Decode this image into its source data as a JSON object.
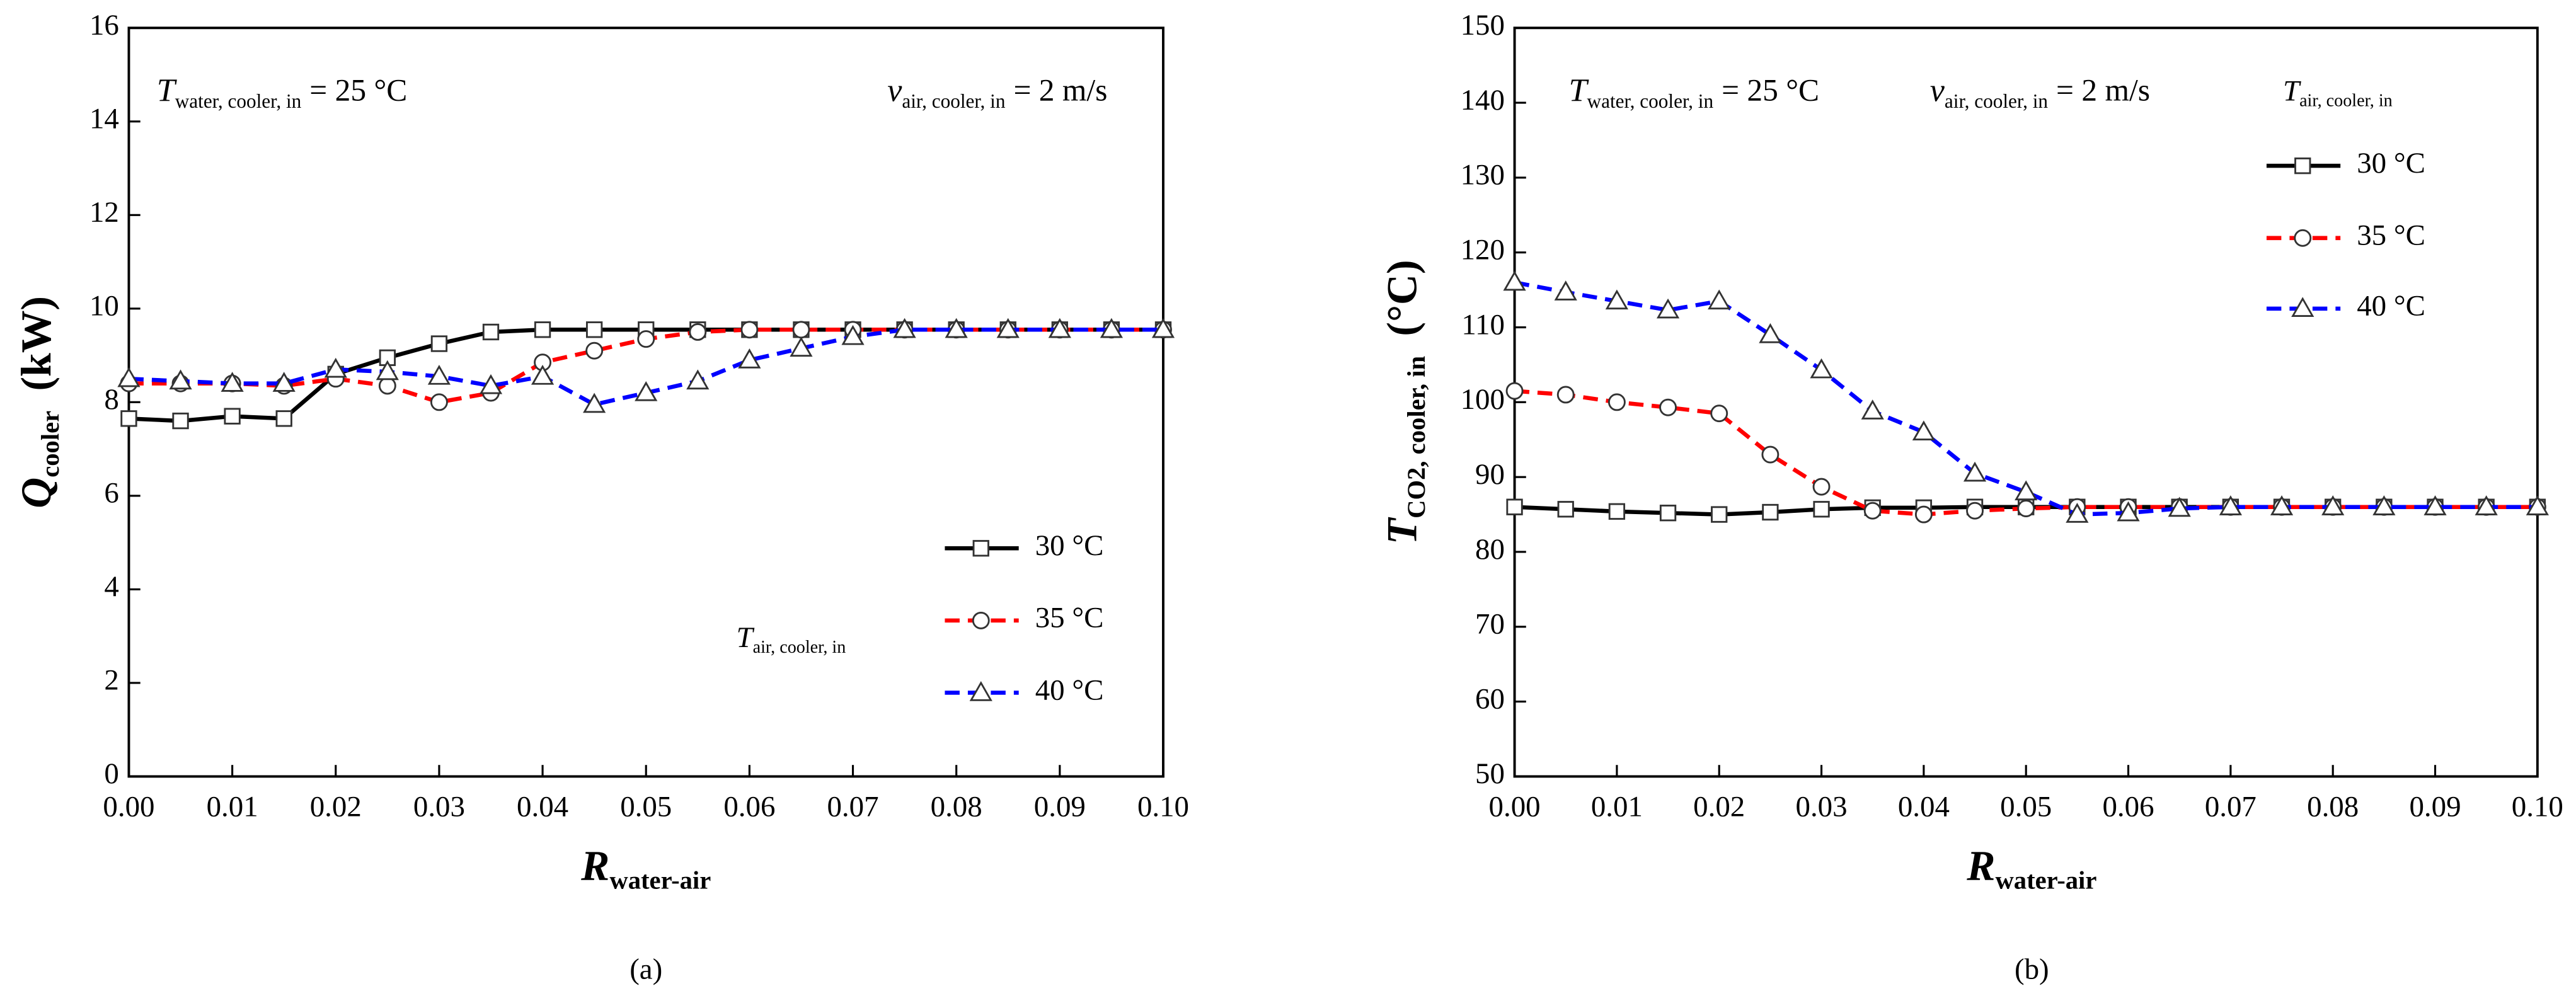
{
  "chart_data": [
    {
      "type": "line",
      "panel_label": "(a)",
      "ylabel": {
        "symbol": "Q",
        "sub": "cooler",
        "unit": "(kW)"
      },
      "xlabel": {
        "symbol": "R",
        "sub": "water-air"
      },
      "annotations": [
        {
          "symbol": "T",
          "sub": "water, cooler, in",
          "text": "= 25 °C"
        },
        {
          "symbol": "v",
          "sub": "air, cooler, in",
          "text": "= 2 m/s"
        }
      ],
      "legend_title": {
        "symbol": "T",
        "sub": "air, cooler, in"
      },
      "x": [
        0,
        0.005,
        0.01,
        0.015,
        0.02,
        0.025,
        0.03,
        0.035,
        0.04,
        0.045,
        0.05,
        0.055,
        0.06,
        0.065,
        0.07,
        0.075,
        0.08,
        0.085,
        0.09,
        0.095,
        0.1
      ],
      "series": [
        {
          "name": "30 °C",
          "color": "#000000",
          "marker": "square",
          "dashed": false,
          "values": [
            7.65,
            7.6,
            7.7,
            7.65,
            8.6,
            8.95,
            9.25,
            9.5,
            9.55,
            9.55,
            9.55,
            9.55,
            9.55,
            9.55,
            9.55,
            9.55,
            9.55,
            9.55,
            9.55,
            9.55,
            9.55
          ]
        },
        {
          "name": "35 °C",
          "color": "#ff0000",
          "marker": "circle",
          "dashed": true,
          "values": [
            8.4,
            8.4,
            8.4,
            8.35,
            8.5,
            8.35,
            8.0,
            8.2,
            8.85,
            9.1,
            9.35,
            9.5,
            9.55,
            9.55,
            9.55,
            9.55,
            9.55,
            9.55,
            9.55,
            9.55,
            9.55
          ]
        },
        {
          "name": "40 °C",
          "color": "#0000ff",
          "marker": "triangle",
          "dashed": true,
          "values": [
            8.5,
            8.45,
            8.4,
            8.4,
            8.7,
            8.65,
            8.55,
            8.35,
            8.55,
            7.95,
            8.2,
            8.45,
            8.9,
            9.15,
            9.4,
            9.55,
            9.55,
            9.55,
            9.55,
            9.55,
            9.55
          ]
        }
      ],
      "xlim": [
        0,
        0.1
      ],
      "ylim": [
        0,
        16
      ],
      "xticks": [
        {
          "value": 0,
          "label": "0.00"
        },
        0.01,
        0.02,
        0.03,
        0.04,
        0.05,
        0.06,
        0.07,
        0.08,
        0.09,
        {
          "value": 0.1,
          "label": "0.10"
        }
      ],
      "yticks": [
        0,
        2,
        4,
        6,
        8,
        10,
        12,
        14,
        16
      ]
    },
    {
      "type": "line",
      "panel_label": "(b)",
      "ylabel": {
        "symbol": "T",
        "sub": "CO2, cooler, in",
        "unit": "(°C)"
      },
      "xlabel": {
        "symbol": "R",
        "sub": "water-air"
      },
      "annotations": [
        {
          "symbol": "T",
          "sub": "water, cooler, in",
          "text": "= 25 °C"
        },
        {
          "symbol": "v",
          "sub": "air, cooler, in",
          "text": "= 2 m/s"
        }
      ],
      "legend_title": {
        "symbol": "T",
        "sub": "air, cooler, in"
      },
      "x": [
        0,
        0.005,
        0.01,
        0.015,
        0.02,
        0.025,
        0.03,
        0.035,
        0.04,
        0.045,
        0.05,
        0.055,
        0.06,
        0.065,
        0.07,
        0.075,
        0.08,
        0.085,
        0.09,
        0.095,
        0.1
      ],
      "series": [
        {
          "name": "30 °C",
          "color": "#000000",
          "marker": "square",
          "dashed": false,
          "values": [
            86,
            85.7,
            85.4,
            85.2,
            85,
            85.3,
            85.7,
            85.9,
            85.9,
            86,
            86,
            86,
            86,
            86,
            86,
            86,
            86,
            86,
            86,
            86,
            86
          ]
        },
        {
          "name": "35 °C",
          "color": "#ff0000",
          "marker": "circle",
          "dashed": true,
          "values": [
            101.5,
            101,
            100,
            99.3,
            98.5,
            93,
            88.7,
            85.5,
            85,
            85.5,
            85.8,
            86,
            86,
            86,
            86,
            86,
            86,
            86,
            86,
            86,
            86
          ]
        },
        {
          "name": "40 °C",
          "color": "#0000ff",
          "marker": "triangle",
          "dashed": true,
          "values": [
            116,
            114.7,
            113.5,
            112.3,
            113.5,
            109,
            104.3,
            98.8,
            96,
            90.5,
            88,
            85,
            85.2,
            85.8,
            86,
            86,
            86,
            86,
            86,
            86,
            86
          ]
        }
      ],
      "xlim": [
        0,
        0.1
      ],
      "ylim": [
        50,
        150
      ],
      "xticks": [
        {
          "value": 0,
          "label": "0.00"
        },
        0.01,
        0.02,
        0.03,
        0.04,
        0.05,
        0.06,
        0.07,
        0.08,
        0.09,
        {
          "value": 0.1,
          "label": "0.10"
        }
      ],
      "yticks": [
        50,
        60,
        70,
        80,
        90,
        100,
        110,
        120,
        130,
        140,
        150
      ]
    }
  ]
}
